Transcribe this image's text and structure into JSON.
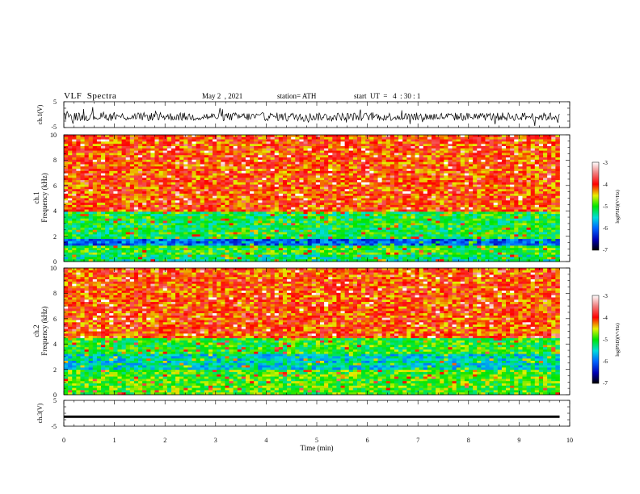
{
  "header": {
    "title": "VLF  Spectra",
    "date": "May 2  , 2021",
    "station": "station= ATH",
    "start": "start  UT  =   4  : 30 : 1"
  },
  "chart_data": [
    {
      "type": "line",
      "ylabel": "ch.1(V)",
      "ylim": [
        -5,
        5
      ],
      "ytick_labels": [
        "5",
        "-5"
      ],
      "description_values": "noisy waveform around -0.8 V"
    },
    {
      "type": "heatmap",
      "ylabel_top": "ch.1",
      "ylabel": "Frequency (kHz)",
      "ylim": [
        0,
        10
      ],
      "ytick_labels": [
        "0",
        "2",
        "4",
        "6",
        "8",
        "10"
      ],
      "colorbar": {
        "label": "log(PSD)(V²/Hz)",
        "range": [
          -7,
          -3
        ],
        "tick_labels": [
          "-3",
          "-4",
          "-5",
          "-6",
          "-7"
        ]
      },
      "bands_khz": [
        {
          "from": 0,
          "to": 0.6,
          "level": -5.3
        },
        {
          "from": 0.6,
          "to": 1.2,
          "level": -5.0
        },
        {
          "from": 1.2,
          "to": 1.8,
          "level": -6.0
        },
        {
          "from": 1.8,
          "to": 4.0,
          "level": -5.1
        },
        {
          "from": 4.0,
          "to": 10,
          "level": -4.1
        }
      ]
    },
    {
      "type": "heatmap",
      "ylabel_top": "ch.2",
      "ylabel": "Frequency (kHz)",
      "ylim": [
        0,
        10
      ],
      "ytick_labels": [
        "0",
        "2",
        "4",
        "6",
        "8",
        "10"
      ],
      "colorbar": {
        "label": "log(PSD)(V²/Hz)",
        "range": [
          -7,
          -3
        ],
        "tick_labels": [
          "-3",
          "-4",
          "-5",
          "-6",
          "-7"
        ]
      },
      "bands_khz": [
        {
          "from": 0,
          "to": 2.0,
          "level": -4.9
        },
        {
          "from": 2.0,
          "to": 3.2,
          "level": -5.5
        },
        {
          "from": 3.2,
          "to": 4.5,
          "level": -5.0
        },
        {
          "from": 4.5,
          "to": 10,
          "level": -4.1
        }
      ]
    },
    {
      "type": "line",
      "ylabel": "ch.3(V)",
      "ylim": [
        -5,
        5
      ],
      "ytick_labels": [
        "5",
        "-5"
      ],
      "constant_value": -1.3
    }
  ],
  "xaxis": {
    "xlabel": "Time  (min)",
    "xlim": [
      0,
      10
    ],
    "tick_labels": [
      "0",
      "1",
      "2",
      "3",
      "4",
      "5",
      "6",
      "7",
      "8",
      "9",
      "10"
    ],
    "data_end": 9.8
  }
}
